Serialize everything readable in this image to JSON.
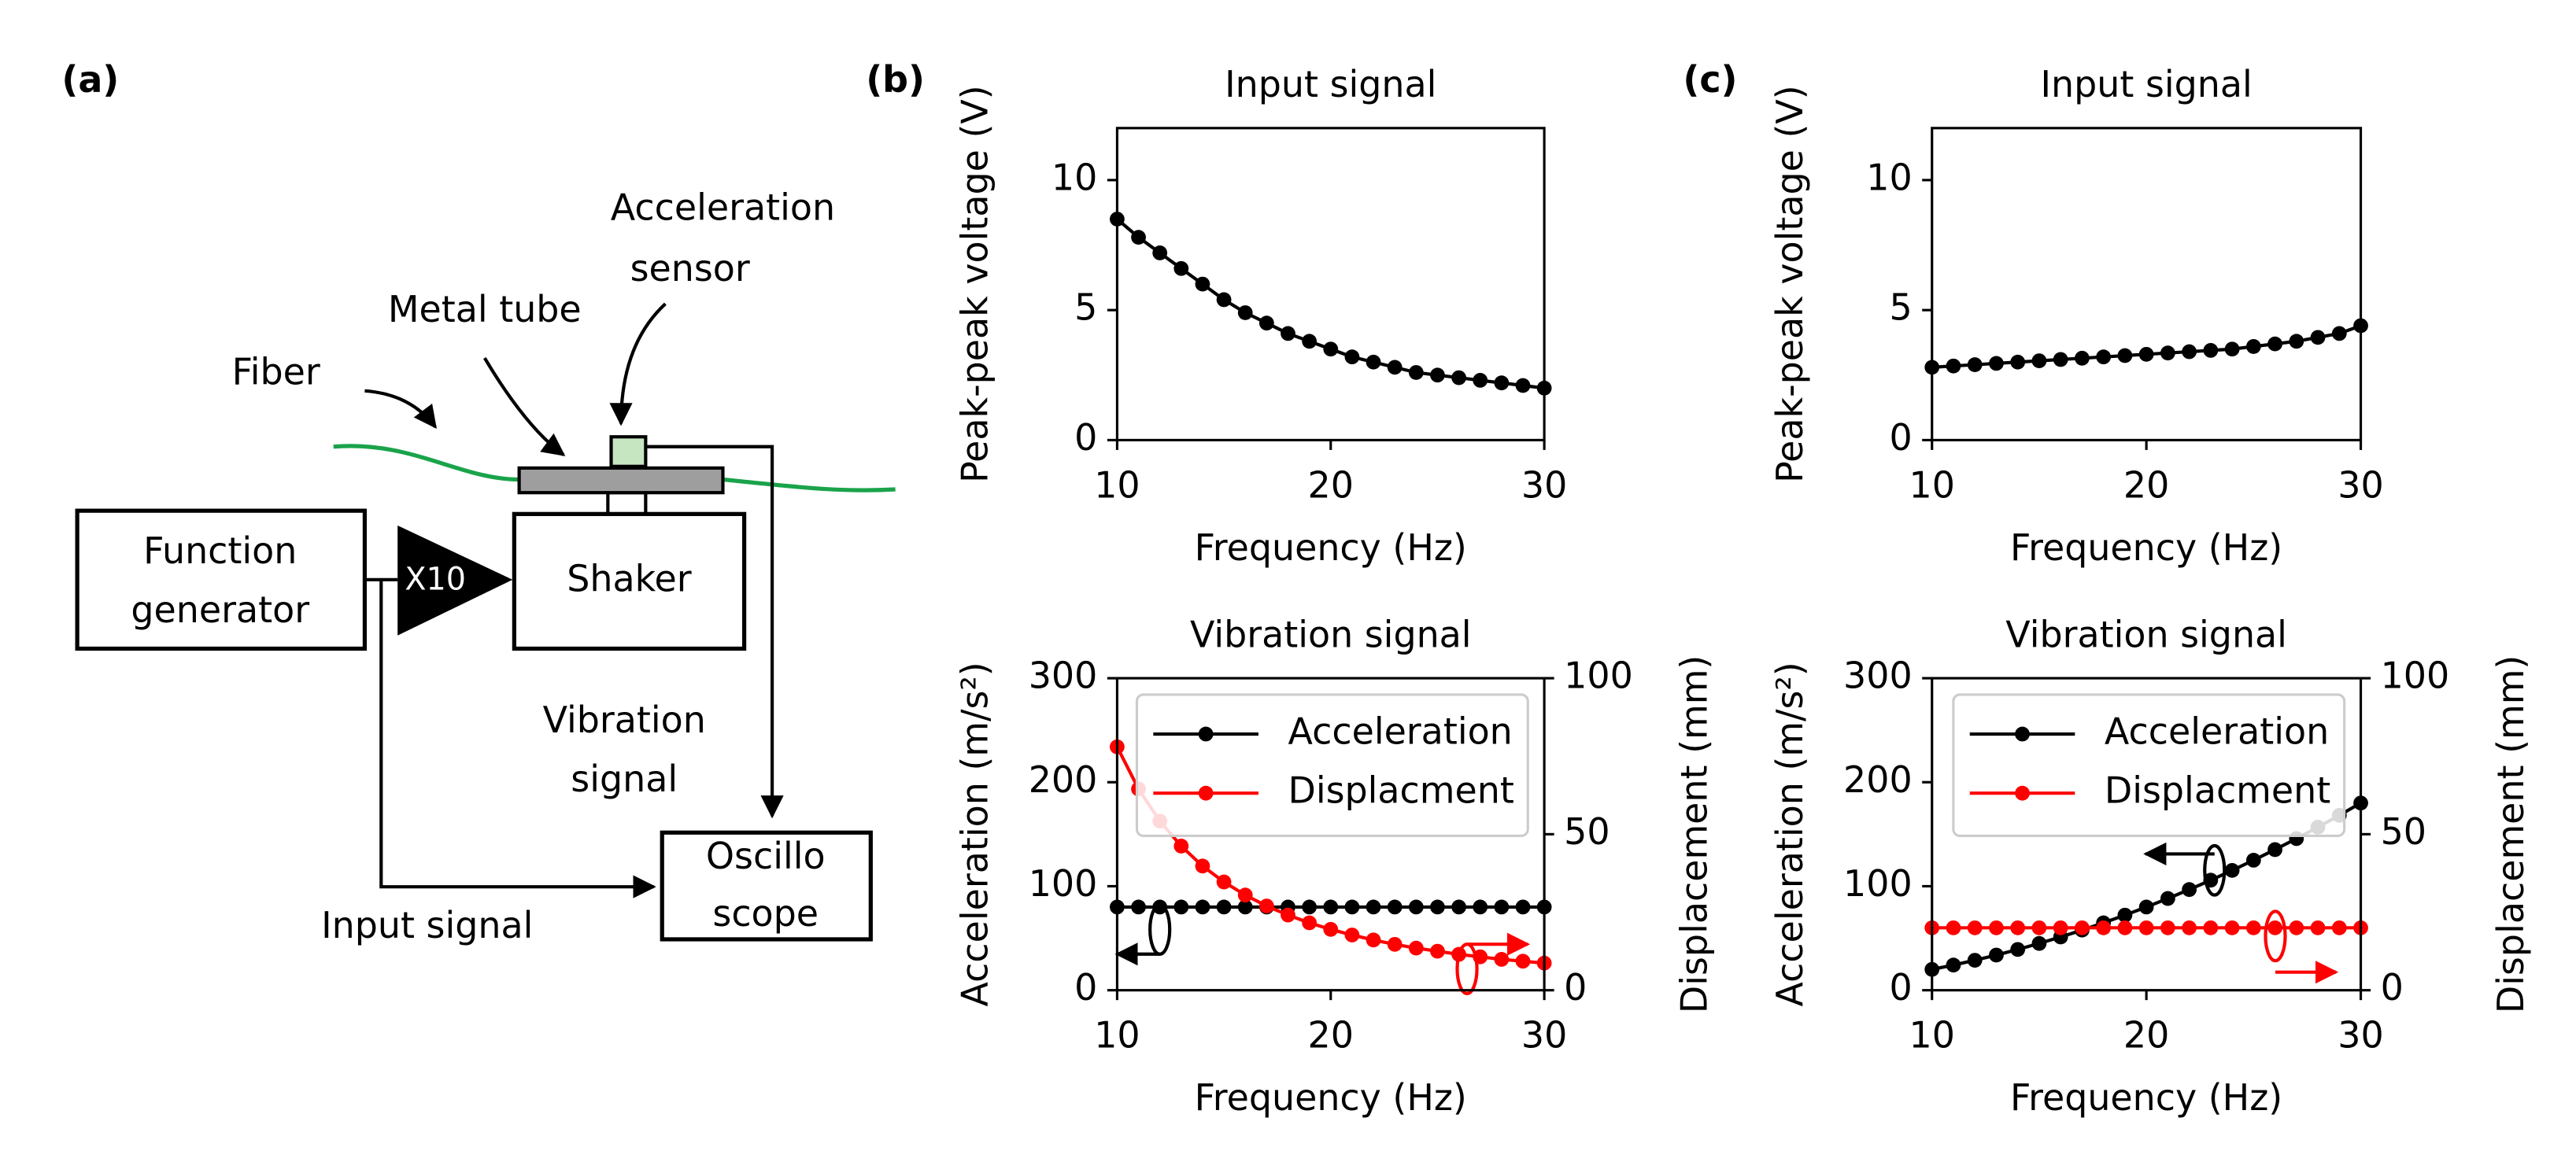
{
  "panel_a": {
    "label": "(a)",
    "acceleration_sensor": [
      "Acceleration",
      "sensor"
    ],
    "metal_tube": "Metal tube",
    "fiber": "Fiber",
    "function_generator": [
      "Function",
      "generator"
    ],
    "amplifier": "X10",
    "shaker": "Shaker",
    "vibration_signal": [
      "Vibration",
      "signal"
    ],
    "oscilloscope": [
      "Oscillo",
      "scope"
    ],
    "input_signal": "Input signal"
  },
  "chart_data": [
    {
      "type": "line",
      "panel_label": "(b)",
      "title": "Input signal",
      "x_label": "Frequency (Hz)",
      "y_label": "Peak-peak voltage (V)",
      "x": [
        10,
        11,
        12,
        13,
        14,
        15,
        16,
        17,
        18,
        19,
        20,
        21,
        22,
        23,
        24,
        25,
        26,
        27,
        28,
        29,
        30
      ],
      "series": [
        {
          "color": "#000000",
          "values": [
            8.5,
            7.8,
            7.2,
            6.6,
            6.0,
            5.4,
            4.9,
            4.5,
            4.1,
            3.8,
            3.5,
            3.2,
            3.0,
            2.8,
            2.6,
            2.5,
            2.4,
            2.3,
            2.2,
            2.1,
            2.0
          ]
        }
      ],
      "xlim": [
        10,
        30
      ],
      "xticks": [
        10,
        20,
        30
      ],
      "ylim": [
        0,
        12
      ],
      "yticks": [
        0,
        5,
        10
      ]
    },
    {
      "type": "line",
      "title": "Vibration signal",
      "x_label": "Frequency (Hz)",
      "y_label": "Acceleration (m/s²)",
      "y2_label": "Displacement (mm)",
      "x": [
        10,
        11,
        12,
        13,
        14,
        15,
        16,
        17,
        18,
        19,
        20,
        21,
        22,
        23,
        24,
        25,
        26,
        27,
        28,
        29,
        30
      ],
      "series": [
        {
          "name": "Acceleration",
          "color": "#000000",
          "values": [
            80,
            80,
            80,
            80,
            80,
            80,
            80,
            80,
            80,
            80,
            80,
            80,
            80,
            80,
            80,
            80,
            80,
            80,
            80,
            80,
            80
          ]
        },
        {
          "name": "Displacment",
          "color": "#ff0000",
          "axis": "y2",
          "values": [
            78,
            64.5,
            54.2,
            46.2,
            39.8,
            34.7,
            30.5,
            27.0,
            24.1,
            21.6,
            19.5,
            17.7,
            16.1,
            14.7,
            13.5,
            12.5,
            11.5,
            10.7,
            9.9,
            9.3,
            8.7
          ]
        }
      ],
      "xlim": [
        10,
        30
      ],
      "xticks": [
        10,
        20,
        30
      ],
      "ylim": [
        0,
        300
      ],
      "yticks": [
        0,
        100,
        200,
        300
      ],
      "y2lim": [
        0,
        100
      ],
      "y2ticks": [
        0,
        50,
        100
      ],
      "legend": "upper right"
    },
    {
      "type": "line",
      "panel_label": "(c)",
      "title": "Input signal",
      "x_label": "Frequency (Hz)",
      "y_label": "Peak-peak voltage (V)",
      "x": [
        10,
        11,
        12,
        13,
        14,
        15,
        16,
        17,
        18,
        19,
        20,
        21,
        22,
        23,
        24,
        25,
        26,
        27,
        28,
        29,
        30
      ],
      "series": [
        {
          "color": "#000000",
          "values": [
            2.8,
            2.85,
            2.9,
            2.95,
            3.0,
            3.05,
            3.1,
            3.15,
            3.2,
            3.25,
            3.3,
            3.35,
            3.4,
            3.45,
            3.5,
            3.6,
            3.7,
            3.8,
            3.95,
            4.1,
            4.4
          ]
        }
      ],
      "xlim": [
        10,
        30
      ],
      "xticks": [
        10,
        20,
        30
      ],
      "ylim": [
        0,
        12
      ],
      "yticks": [
        0,
        5,
        10
      ]
    },
    {
      "type": "line",
      "title": "Vibration signal",
      "x_label": "Frequency (Hz)",
      "y_label": "Acceleration (m/s²)",
      "y2_label": "Displacement (mm)",
      "x": [
        10,
        11,
        12,
        13,
        14,
        15,
        16,
        17,
        18,
        19,
        20,
        21,
        22,
        23,
        24,
        25,
        26,
        27,
        28,
        29,
        30
      ],
      "series": [
        {
          "name": "Acceleration",
          "color": "#000000",
          "values": [
            20,
            24.2,
            28.8,
            33.8,
            39.2,
            45,
            51.2,
            57.8,
            64.8,
            72.2,
            80,
            88.2,
            96.8,
            105.8,
            115.2,
            125,
            135.2,
            145.8,
            156.8,
            168.2,
            180
          ]
        },
        {
          "name": "Displacment",
          "color": "#ff0000",
          "axis": "y2",
          "values": [
            20,
            20,
            20,
            20,
            20,
            20,
            20,
            20,
            20,
            20,
            20,
            20,
            20,
            20,
            20,
            20,
            20,
            20,
            20,
            20,
            20
          ]
        }
      ],
      "xlim": [
        10,
        30
      ],
      "xticks": [
        10,
        20,
        30
      ],
      "ylim": [
        0,
        300
      ],
      "yticks": [
        0,
        100,
        200,
        300
      ],
      "y2lim": [
        0,
        100
      ],
      "y2ticks": [
        0,
        50,
        100
      ],
      "legend": "upper right"
    }
  ]
}
